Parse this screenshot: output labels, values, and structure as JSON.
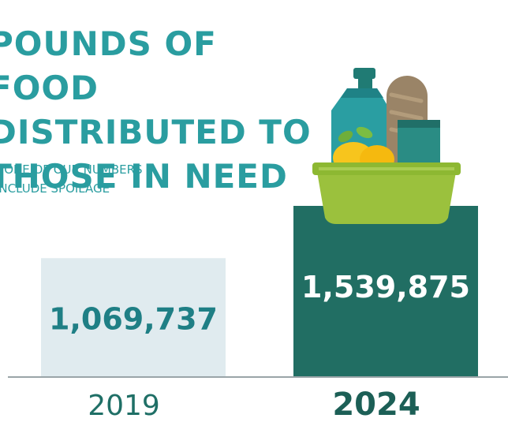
{
  "title": "POUNDS OF FOOD\nDISTRIBUTED TO\nTHOSE IN NEED",
  "note": "NONE OF OUR NUMBERS\nINCLUDE SPOILAGE",
  "colors": {
    "title": "#2a9da0",
    "bar_2019": "#e0ebef",
    "bar_2024": "#216e63",
    "label_2019": "#1f7f85",
    "label_2024": "#ffffff",
    "axis": "#9aa5a8",
    "tick_2019": "#1f6f66",
    "tick_2024": "#1c5f56"
  },
  "illustration": "grocery-basket-icon",
  "chart_data": {
    "type": "bar",
    "categories": [
      "2019",
      "2024"
    ],
    "values": [
      1069737,
      1539875
    ],
    "data_labels": [
      "1,069,737",
      "1,539,875"
    ],
    "highlight": "2024",
    "title": "POUNDS OF FOOD DISTRIBUTED TO THOSE IN NEED",
    "xlabel": "",
    "ylabel": "",
    "grid": false
  }
}
